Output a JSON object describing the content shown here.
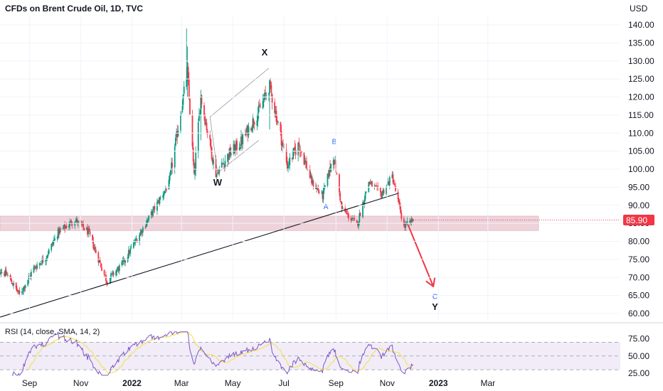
{
  "header": {
    "title": "CFDs on Brent Crude Oil, 1D, TVC",
    "currency": "USD"
  },
  "price_tag": {
    "value": "85.90",
    "color": "#f23645"
  },
  "colors": {
    "up": "#089981",
    "down": "#f23645",
    "zone": "#e8c4cf",
    "rsi_line": "#7e57c2",
    "rsi_sma": "#f2e35b",
    "rsi_band": "#ede7f6",
    "arrow": "#f23645",
    "wave_blue": "#2962ff"
  },
  "chart_data": [
    {
      "type": "candlestick",
      "title": "CFDs on Brent Crude Oil, 1D, TVC",
      "ylabel": "USD",
      "ylim": [
        57.5,
        144
      ],
      "yticks": [
        "60.00",
        "65.00",
        "70.00",
        "75.00",
        "80.00",
        "85.00",
        "90.00",
        "95.00",
        "100.00",
        "105.00",
        "110.00",
        "115.00",
        "120.00",
        "125.00",
        "130.00",
        "135.00",
        "140.00"
      ],
      "xticks": [
        {
          "label": "Sep",
          "bold": false
        },
        {
          "label": "Nov",
          "bold": false
        },
        {
          "label": "2022",
          "bold": true
        },
        {
          "label": "Mar",
          "bold": false
        },
        {
          "label": "May",
          "bold": false
        },
        {
          "label": "Jul",
          "bold": false
        },
        {
          "label": "Sep",
          "bold": false
        },
        {
          "label": "Nov",
          "bold": false
        },
        {
          "label": "2023",
          "bold": true
        },
        {
          "label": "Mar",
          "bold": false
        }
      ],
      "date_range": [
        "2021-07-21",
        "2022-12-02"
      ],
      "last_price": 85.9,
      "close_anchors": [
        {
          "date": "2021-07-21",
          "close": 73.0
        },
        {
          "date": "2021-08-06",
          "close": 70.5
        },
        {
          "date": "2021-08-20",
          "close": 65.2
        },
        {
          "date": "2021-09-06",
          "close": 72.5
        },
        {
          "date": "2021-09-20",
          "close": 75.5
        },
        {
          "date": "2021-10-05",
          "close": 82.5
        },
        {
          "date": "2021-10-25",
          "close": 86.0
        },
        {
          "date": "2021-11-10",
          "close": 82.5
        },
        {
          "date": "2021-11-26",
          "close": 72.7
        },
        {
          "date": "2021-12-02",
          "close": 69.0
        },
        {
          "date": "2021-12-20",
          "close": 73.5
        },
        {
          "date": "2022-01-05",
          "close": 80.0
        },
        {
          "date": "2022-01-25",
          "close": 88.0
        },
        {
          "date": "2022-02-14",
          "close": 96.0
        },
        {
          "date": "2022-03-08",
          "close": 127.0
        },
        {
          "date": "2022-03-16",
          "close": 98.0
        },
        {
          "date": "2022-03-24",
          "close": 120.0
        },
        {
          "date": "2022-04-11",
          "close": 98.5
        },
        {
          "date": "2022-04-26",
          "close": 104.0
        },
        {
          "date": "2022-05-11",
          "close": 107.5
        },
        {
          "date": "2022-06-01",
          "close": 116.0
        },
        {
          "date": "2022-06-14",
          "close": 123.0
        },
        {
          "date": "2022-07-05",
          "close": 101.0
        },
        {
          "date": "2022-07-19",
          "close": 107.0
        },
        {
          "date": "2022-08-03",
          "close": 96.5
        },
        {
          "date": "2022-08-16",
          "close": 92.5
        },
        {
          "date": "2022-08-29",
          "close": 104.0
        },
        {
          "date": "2022-09-08",
          "close": 89.0
        },
        {
          "date": "2022-09-26",
          "close": 84.5
        },
        {
          "date": "2022-10-10",
          "close": 96.5
        },
        {
          "date": "2022-10-25",
          "close": 93.0
        },
        {
          "date": "2022-11-07",
          "close": 98.0
        },
        {
          "date": "2022-11-21",
          "close": 84.0
        },
        {
          "date": "2022-12-02",
          "close": 85.9
        }
      ],
      "support_zone": [
        83,
        87
      ],
      "trendline": [
        {
          "date": "2021-07-28",
          "price": 59.0
        },
        {
          "date": "2022-11-14",
          "price": 93.3
        }
      ],
      "channel_lines": [
        [
          {
            "date": "2022-04-04",
            "price": 114.5
          },
          {
            "date": "2022-06-13",
            "price": 128.0
          }
        ],
        [
          {
            "date": "2022-04-13",
            "price": 99.0
          },
          {
            "date": "2022-06-01",
            "price": 108.0
          }
        ],
        [
          {
            "date": "2022-04-04",
            "price": 114.5
          },
          {
            "date": "2022-04-13",
            "price": 99.0
          }
        ]
      ],
      "forecast_arrow": [
        {
          "date": "2022-11-26",
          "price": 84.5
        },
        {
          "date": "2022-12-26",
          "price": 67.5
        }
      ],
      "wave_labels": [
        {
          "text": "X",
          "date": "2022-06-08",
          "price": 131.5,
          "style": "black"
        },
        {
          "text": "W",
          "date": "2022-04-13",
          "price": 95.5,
          "style": "black"
        },
        {
          "text": "A",
          "date": "2022-08-20",
          "price": 89.0,
          "style": "blue"
        },
        {
          "text": "B",
          "date": "2022-08-30",
          "price": 107.0,
          "style": "blue"
        },
        {
          "text": "C",
          "date": "2022-12-28",
          "price": 64.0,
          "style": "blue"
        },
        {
          "text": "Y",
          "date": "2022-12-28",
          "price": 61.0,
          "style": "black"
        }
      ]
    },
    {
      "type": "line",
      "title": "RSI (14, close, SMA, 14, 2)",
      "ylim": [
        25,
        85
      ],
      "yticks": [
        "25.00",
        "50.00",
        "75.00"
      ],
      "bands": [
        30,
        70
      ]
    }
  ]
}
